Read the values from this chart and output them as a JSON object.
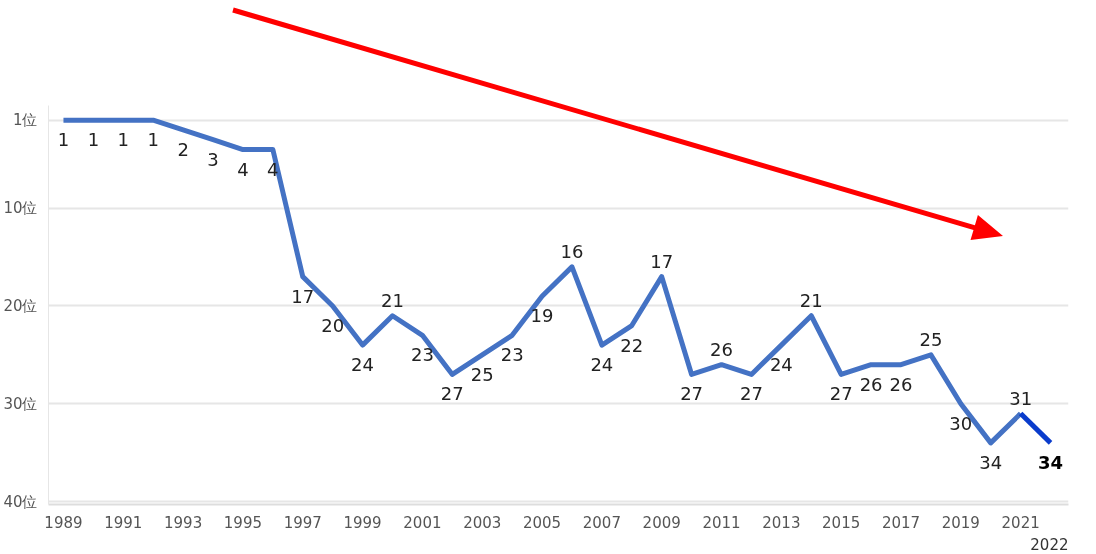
{
  "chart_data": {
    "type": "line",
    "x": [
      1989,
      1990,
      1991,
      1992,
      1993,
      1994,
      1995,
      1996,
      1997,
      1998,
      1999,
      2000,
      2001,
      2002,
      2003,
      2004,
      2005,
      2006,
      2007,
      2008,
      2009,
      2010,
      2011,
      2012,
      2013,
      2014,
      2015,
      2016,
      2017,
      2018,
      2019,
      2020,
      2021
    ],
    "series": [
      {
        "color": "#4472c4",
        "values": [
          1,
          1,
          1,
          1,
          2,
          3,
          4,
          4,
          17,
          20,
          24,
          21,
          23,
          27,
          25,
          23,
          19,
          16,
          24,
          22,
          17,
          27,
          26,
          27,
          24,
          21,
          27,
          26,
          26,
          25,
          30,
          34,
          31
        ]
      },
      {
        "color": "#0a3ccc",
        "x": [
          2021,
          2022
        ],
        "values": [
          31,
          34
        ],
        "value_labels": [
          null,
          "34"
        ]
      }
    ],
    "xlim": [
      1988.5,
      2022.6
    ],
    "xticks": [
      1989,
      1991,
      1993,
      1995,
      1997,
      1999,
      2001,
      2003,
      2005,
      2007,
      2009,
      2011,
      2013,
      2015,
      2017,
      2019,
      2021
    ],
    "ylim": [
      40.3,
      -0.5
    ],
    "yticks": [
      {
        "value": 1,
        "label": "1位"
      },
      {
        "value": 10,
        "label": "10位"
      },
      {
        "value": 20,
        "label": "20位"
      },
      {
        "value": 30,
        "label": "30位"
      },
      {
        "value": 40,
        "label": "40位"
      }
    ],
    "annotations": [
      "2022"
    ],
    "grid": "y",
    "data_labels": true,
    "marker": "none",
    "line_style": "solid"
  }
}
